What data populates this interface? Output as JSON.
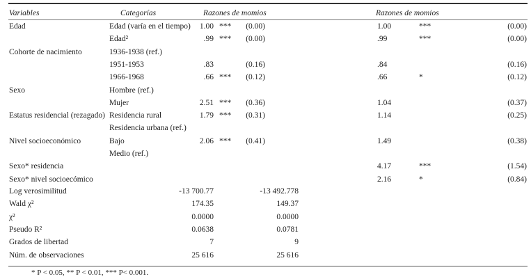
{
  "header": {
    "variables": "Variables",
    "categories": "Categorías",
    "model1": "Razones de momios",
    "model2": "Razones de momios"
  },
  "rows": [
    {
      "var": "Edad",
      "cat": "Edad (varía en el tiempo)",
      "coef1": "1.00",
      "sig1": "***",
      "se1": "(0.00)",
      "coef2": "1.00",
      "sig2": "***",
      "se2": "(0.00)"
    },
    {
      "var": "",
      "cat": "Edad²",
      "coef1": ".99",
      "sig1": "***",
      "se1": "(0.00)",
      "coef2": ".99",
      "sig2": "***",
      "se2": "(0.00)"
    },
    {
      "var": "Cohorte de nacimiento",
      "cat": "1936-1938 (ref.)"
    },
    {
      "var": "",
      "cat": "1951-1953",
      "coef1": ".83",
      "sig1": "",
      "se1": "(0.16)",
      "coef2": ".84",
      "sig2": "",
      "se2": "(0.16)"
    },
    {
      "var": "",
      "cat": "1966-1968",
      "coef1": ".66",
      "sig1": "***",
      "se1": "(0.12)",
      "coef2": ".66",
      "sig2": "*",
      "se2": "(0.12)"
    },
    {
      "var": "Sexo",
      "cat": "Hombre (ref.)"
    },
    {
      "var": "",
      "cat": "Mujer",
      "coef1": "2.51",
      "sig1": "***",
      "se1": "(0.36)",
      "coef2": "1.04",
      "sig2": "",
      "se2": "(0.37)"
    },
    {
      "var": "Estatus residencial (rezagado)",
      "cat": "Residencia rural",
      "coef1": "1.79",
      "sig1": "***",
      "se1": "(0.31)",
      "coef2": "1.14",
      "sig2": "",
      "se2": "(0.25)"
    },
    {
      "var": "",
      "cat": "Residencia urbana (ref.)"
    },
    {
      "var": "Nivel socioeconómico",
      "cat": "Bajo",
      "coef1": "2.06",
      "sig1": "***",
      "se1": "(0.41)",
      "coef2": "1.49",
      "sig2": "",
      "se2": "(0.38)"
    },
    {
      "var": "",
      "cat": "Medio (ref.)"
    },
    {
      "var": "Sexo* residencia",
      "cat": "",
      "coef2": "4.17",
      "sig2": "***",
      "se2": "(1.54)"
    },
    {
      "var": "Sexo* nivel socioecómico",
      "cat": "",
      "coef2": "2.16",
      "sig2": "*",
      "se2": "(0.84)"
    }
  ],
  "stats": [
    {
      "label": "Log verosimilitud",
      "m1": "-13 700.77",
      "m2": "-13 492.778"
    },
    {
      "label": "Wald χ²",
      "m1": "174.35",
      "m2": "149.37"
    },
    {
      "label": "χ²",
      "m1": "0.0000",
      "m2": "0.0000"
    },
    {
      "label": "Pseudo R²",
      "m1": "0.0638",
      "m2": "0.0781"
    },
    {
      "label": "Grados de libertad",
      "m1": "7",
      "m2": "9"
    },
    {
      "label": "Núm. de observaciones",
      "m1": "25 616",
      "m2": "25 616"
    }
  ],
  "footnote": "* P < 0.05, ** P < 0.01, *** P< 0.001."
}
